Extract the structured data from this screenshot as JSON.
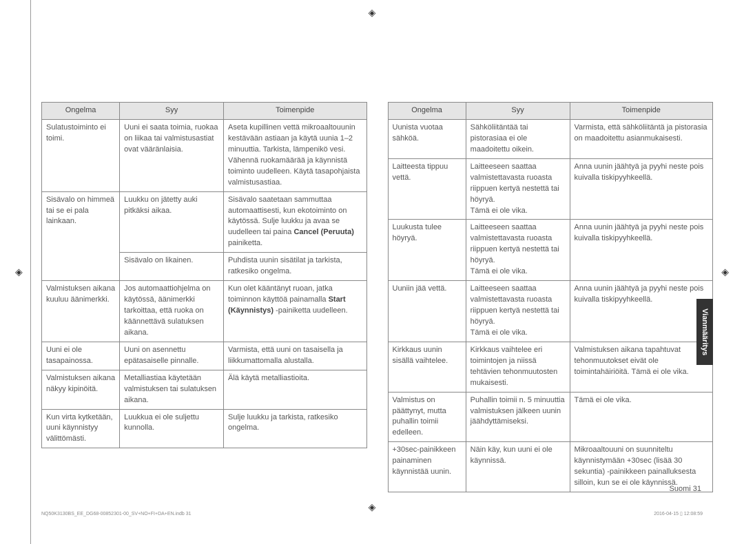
{
  "crop_marks": {
    "symbol": "◈"
  },
  "side_tab": "Vianmääritys",
  "page_label": "Suomi  31",
  "footer": {
    "left": "NQ50K3130BS_EE_DG68-00852301-00_SV+NO+FI+DA+EN.indb   31",
    "right": "2016-04-15  ▯ 12:08:59"
  },
  "headers": [
    "Ongelma",
    "Syy",
    "Toimenpide"
  ],
  "left_table": [
    {
      "problem": "Sulatustoiminto ei toimi.",
      "cause": "Uuni ei saata toimia, ruokaa on liikaa tai valmistusastiat ovat vääränlaisia.",
      "action": "Aseta kupillinen vettä mikroaaltouunin kestävään astiaan ja käytä uunia 1–2 minuuttia. Tarkista, lämpenikö vesi. Vähennä ruokamäärää ja käynnistä toiminto uudelleen. Käytä tasapohjaista valmistusastiaa."
    },
    {
      "problem": "Sisävalo on himmeä tai se ei pala lainkaan.",
      "rows": [
        {
          "cause": "Luukku on jätetty auki pitkäksi aikaa.",
          "action_html": "Sisävalo saatetaan sammuttaa automaattisesti, kun ekotoiminto on käytössä. Sulje luukku ja avaa se uudelleen tai paina <b>Cancel (Peruuta)</b> painiketta."
        },
        {
          "cause": "Sisävalo on likainen.",
          "action": "Puhdista uunin sisätilat ja tarkista, ratkesiko ongelma."
        }
      ]
    },
    {
      "problem": "Valmistuksen aikana kuuluu äänimerkki.",
      "cause": "Jos automaattiohjelma on käytössä, äänimerkki tarkoittaa, että ruoka on käännettävä sulatuksen aikana.",
      "action_html": "Kun olet kääntänyt ruoan, jatka toiminnon käyttöä painamalla <b>Start (Käynnistys)</b> -painiketta uudelleen."
    },
    {
      "problem": "Uuni ei ole tasapainossa.",
      "cause": "Uuni on asennettu epätasaiselle pinnalle.",
      "action": "Varmista, että uuni on tasaisella ja liikkumattomalla alustalla."
    },
    {
      "problem": "Valmistuksen aikana näkyy kipinöitä.",
      "cause": "Metalliastiaa käytetään valmistuksen tai sulatuksen aikana.",
      "action": "Älä käytä metalliastioita."
    },
    {
      "problem": "Kun virta kytketään, uuni käynnistyy välittömästi.",
      "cause": "Luukkua ei ole suljettu kunnolla.",
      "action": "Sulje luukku ja tarkista, ratkesiko ongelma."
    }
  ],
  "right_table": [
    {
      "problem": "Uunista vuotaa sähköä.",
      "cause": "Sähköliitäntää tai pistorasiaa ei ole maadoitettu oikein.",
      "action": "Varmista, että sähköliitäntä ja pistorasia on maadoitettu asianmukaisesti."
    },
    {
      "problem": "Laitteesta tippuu vettä.",
      "cause": "Laitteeseen saattaa valmistettavasta ruoasta riippuen kertyä nestettä tai höyryä.\nTämä ei ole vika.",
      "action": "Anna uunin jäähtyä ja pyyhi neste pois kuivalla tiskipyyhkeellä."
    },
    {
      "problem": "Luukusta tulee höyryä.",
      "cause": "Laitteeseen saattaa valmistettavasta ruoasta riippuen kertyä nestettä tai höyryä.\nTämä ei ole vika.",
      "action": "Anna uunin jäähtyä ja pyyhi neste pois kuivalla tiskipyyhkeellä."
    },
    {
      "problem": "Uuniin jää vettä.",
      "cause": "Laitteeseen saattaa valmistettavasta ruoasta riippuen kertyä nestettä tai höyryä.\nTämä ei ole vika.",
      "action": "Anna uunin jäähtyä ja pyyhi neste pois kuivalla tiskipyyhkeellä."
    },
    {
      "problem": "Kirkkaus uunin sisällä vaihtelee.",
      "cause": "Kirkkaus vaihtelee eri toimintojen ja niissä tehtävien tehonmuutosten mukaisesti.",
      "action": "Valmistuksen aikana tapahtuvat tehonmuutokset eivät ole toimintahäiriöitä. Tämä ei ole vika."
    },
    {
      "problem": "Valmistus on päättynyt, mutta puhallin toimii edelleen.",
      "cause": "Puhallin toimii n. 5 minuuttia valmistuksen jälkeen uunin jäähdyttämiseksi.",
      "action": "Tämä ei ole vika."
    },
    {
      "problem": "+30sec-painikkeen painaminen käynnistää uunin.",
      "cause": "Näin käy, kun uuni ei ole käynnissä.",
      "action": "Mikroaaltouuni on suunniteltu käynnistymään +30sec (lisää 30 sekuntia) -painikkeen painalluksesta silloin, kun se ei ole käynnissä."
    }
  ]
}
